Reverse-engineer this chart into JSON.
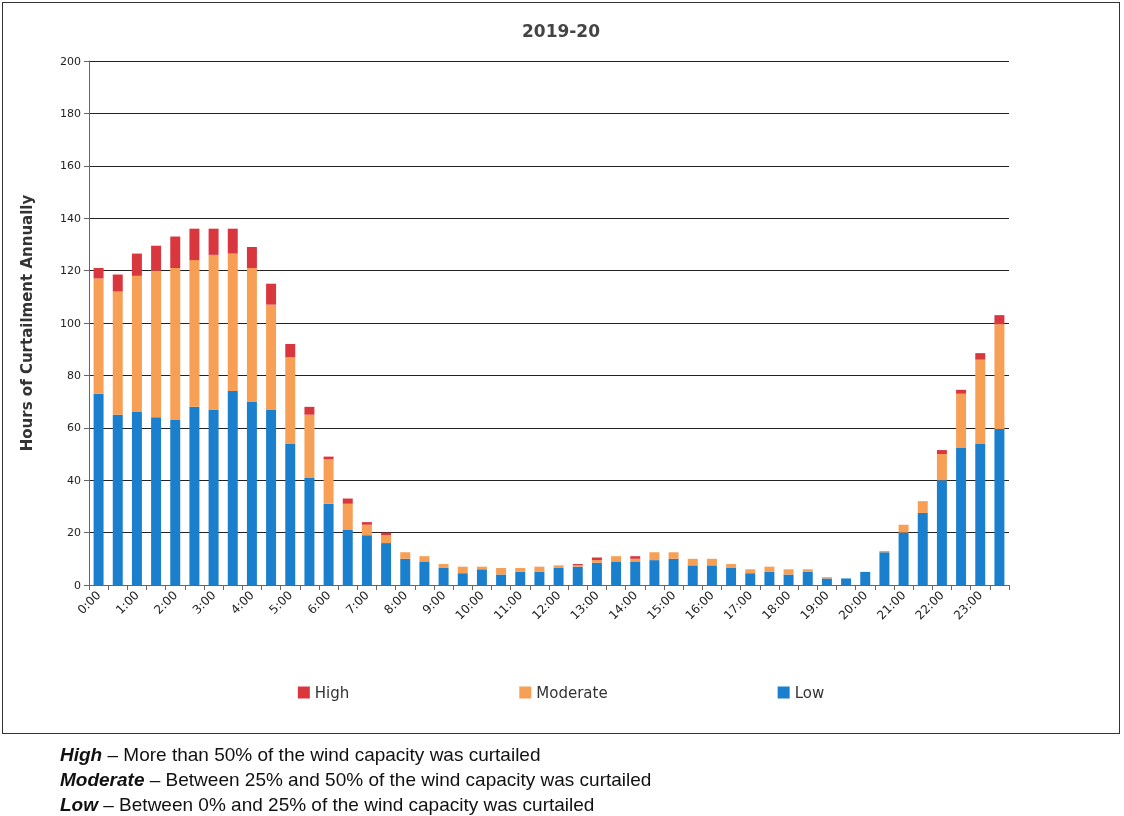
{
  "chart_data": {
    "type": "bar",
    "title": "2019-20",
    "ylabel": "Hours of Curtailment Annually",
    "stacked": true,
    "grid": "y",
    "legend": "bottom",
    "categories": [
      "0:00",
      null,
      "1:00",
      null,
      "2:00",
      null,
      "3:00",
      null,
      "4:00",
      null,
      "5:00",
      null,
      "6:00",
      null,
      "7:00",
      null,
      "8:00",
      null,
      "9:00",
      null,
      "10:00",
      null,
      "11:00",
      null,
      "12:00",
      null,
      "13:00",
      null,
      "14:00",
      null,
      "15:00",
      null,
      "16:00",
      null,
      "17:00",
      null,
      "18:00",
      null,
      "19:00",
      null,
      "20:00",
      null,
      "21:00",
      null,
      "22:00",
      null,
      "23:00",
      null
    ],
    "ylim": [
      0,
      200
    ],
    "yticks": [
      0,
      20,
      40,
      60,
      80,
      100,
      120,
      140,
      160,
      180,
      200
    ],
    "series": [
      {
        "name": "Low",
        "color": "#1a7fcc",
        "values": [
          73,
          65,
          66,
          64,
          63,
          68,
          67,
          74,
          70,
          67,
          54,
          41,
          31,
          21,
          19,
          16,
          10,
          9,
          6.5,
          4.5,
          6,
          4,
          5,
          5,
          6.5,
          7,
          8.5,
          9,
          9,
          9.5,
          10,
          7.5,
          7.5,
          6.5,
          4.5,
          5,
          4,
          5,
          2.5,
          2.5,
          5,
          12.5,
          20,
          27.5,
          40,
          52.5,
          54,
          59.5
        ]
      },
      {
        "name": "Moderate",
        "color": "#f79f55",
        "values": [
          44,
          47,
          52,
          56,
          58,
          56,
          59,
          52.5,
          51,
          40,
          33,
          24,
          17,
          10,
          4,
          3,
          2.5,
          2,
          1.5,
          2.5,
          1,
          2.5,
          1.5,
          2,
          1,
          0.5,
          1,
          2,
          1,
          3,
          2.5,
          2.5,
          2.5,
          1.5,
          1.5,
          2,
          2,
          1,
          0.5,
          0,
          0,
          0.5,
          3,
          4.5,
          10,
          20.5,
          32,
          40
        ]
      },
      {
        "name": "High",
        "color": "#d9363e",
        "values": [
          4,
          6.5,
          8.5,
          9.5,
          12,
          12,
          10,
          9.5,
          8,
          8,
          5,
          3,
          1,
          2,
          1,
          1,
          0,
          0,
          0,
          0,
          0,
          0,
          0,
          0,
          0,
          0.5,
          1,
          0,
          1,
          0,
          0,
          0,
          0,
          0,
          0,
          0,
          0,
          0,
          0,
          0,
          0,
          0,
          0,
          0,
          1.5,
          1.5,
          2.5,
          3.5
        ]
      }
    ],
    "annotations": [
      "High – More than 50% of the wind capacity was curtailed",
      "Moderate – Between 25% and 50% of the wind capacity was curtailed",
      "Low – Between 0% and 25% of the wind capacity was curtailed"
    ]
  }
}
